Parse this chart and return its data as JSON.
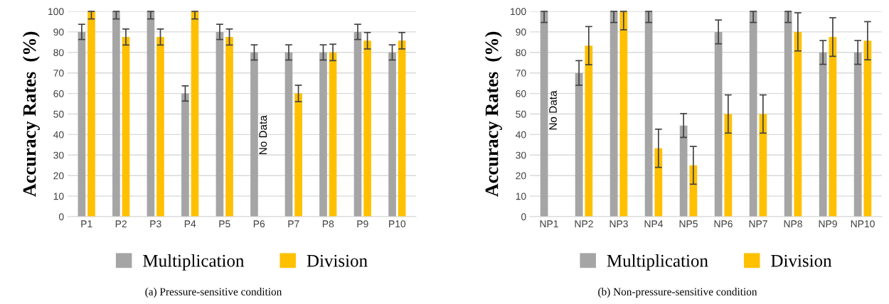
{
  "chart_data": [
    {
      "type": "bar",
      "ylabel": "Accuracy Rates  (%)",
      "categories": [
        "P1",
        "P2",
        "P3",
        "P4",
        "P5",
        "P6",
        "P7",
        "P8",
        "P9",
        "P10"
      ],
      "series": [
        {
          "name": "Multiplication",
          "color": "#a5a5a5",
          "values": [
            90,
            100,
            100,
            60,
            90,
            80,
            80,
            80,
            90,
            80
          ],
          "errors": [
            3.7,
            [
              96.3,
              100
            ],
            [
              96.3,
              100
            ],
            3.7,
            3.7,
            3.7,
            3.7,
            3.7,
            3.7,
            3.7
          ]
        },
        {
          "name": "Division",
          "color": "#ffc000",
          "values": [
            100,
            87.5,
            87.5,
            100,
            87.5,
            null,
            60,
            80,
            85.7,
            85.7
          ],
          "errors": [
            [
              96.3,
              100
            ],
            3.9,
            3.9,
            [
              96.3,
              100
            ],
            3.9,
            null,
            4,
            4,
            4,
            4
          ]
        }
      ],
      "ylim": [
        0,
        100
      ],
      "yticks": [
        0,
        10,
        20,
        30,
        40,
        50,
        60,
        70,
        80,
        90,
        100
      ],
      "grid": "y",
      "legend": "bottom",
      "annotations": [
        {
          "text": "No Data",
          "x": "P6",
          "y": 30
        },
        "(a) Pressure-sensitive condition"
      ]
    },
    {
      "type": "bar",
      "ylabel": "Accuracy Rates  (%)",
      "categories": [
        "NP1",
        "NP2",
        "NP3",
        "NP4",
        "NP5",
        "NP6",
        "NP7",
        "NP8",
        "NP9",
        "NP10"
      ],
      "series": [
        {
          "name": "Multiplication",
          "color": "#a5a5a5",
          "values": [
            100,
            70,
            100,
            100,
            44.4,
            90,
            100,
            100,
            80,
            80
          ],
          "errors": [
            [
              94.6,
              100
            ],
            6,
            [
              94.6,
              100
            ],
            [
              94.6,
              100
            ],
            5.8,
            5.8,
            [
              94.6,
              100
            ],
            [
              94.6,
              100
            ],
            5.8,
            5.8
          ]
        },
        {
          "name": "Division",
          "color": "#ffc000",
          "values": [
            null,
            83.3,
            100,
            33.3,
            25,
            50,
            50,
            90,
            87.5,
            85.7
          ],
          "errors": [
            null,
            9.3,
            [
              91,
              100
            ],
            9.3,
            9.2,
            9.3,
            9.3,
            9.3,
            9.4,
            9.3
          ]
        }
      ],
      "ylim": [
        0,
        100
      ],
      "yticks": [
        0,
        10,
        20,
        30,
        40,
        50,
        60,
        70,
        80,
        90,
        100
      ],
      "grid": "y",
      "legend": "bottom",
      "annotations": [
        {
          "text": "No Data",
          "x": "NP1",
          "y": 42
        },
        "(b) Non-pressure-sensitive condition"
      ]
    }
  ]
}
